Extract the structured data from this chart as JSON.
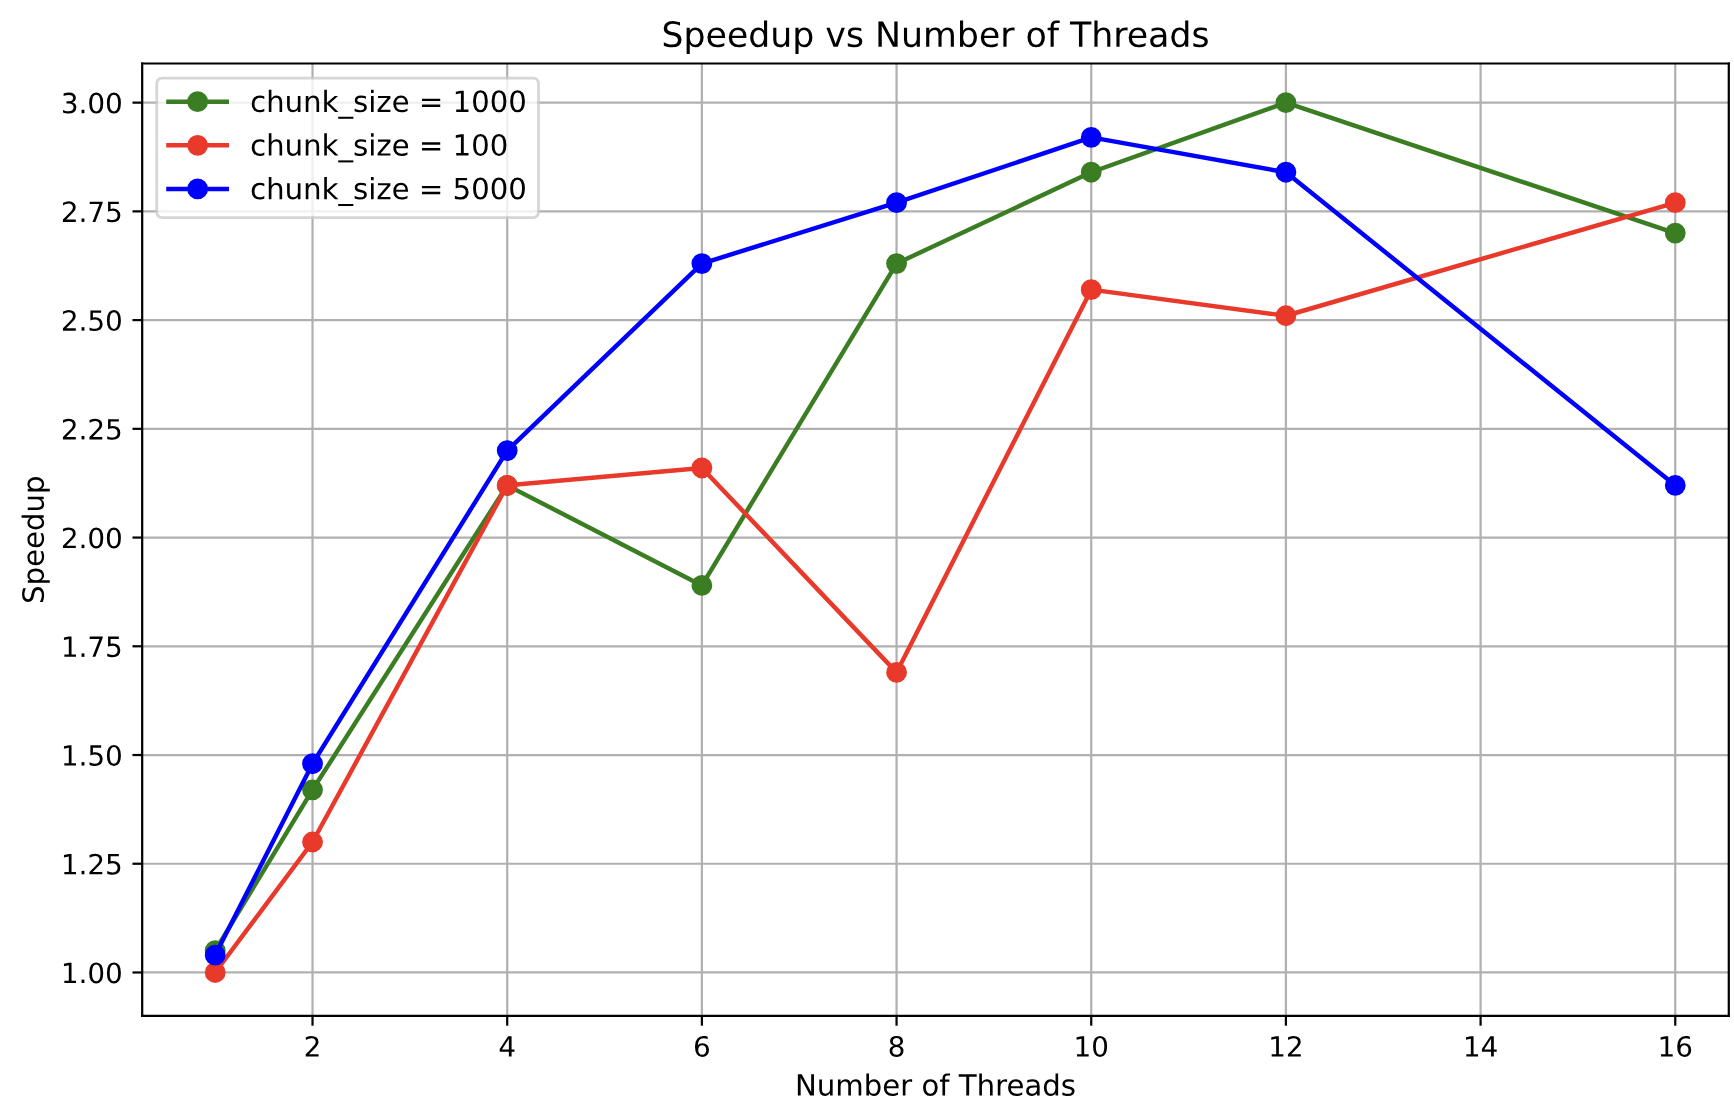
{
  "chart_data": {
    "type": "line",
    "title": "Speedup vs Number of Threads",
    "xlabel": "Number of Threads",
    "ylabel": "Speedup",
    "x": [
      1,
      2,
      4,
      6,
      8,
      10,
      12,
      16
    ],
    "series": [
      {
        "name": "chunk_size = 1000",
        "color": "#3a7d22",
        "values": [
          1.05,
          1.42,
          2.12,
          1.89,
          2.63,
          2.84,
          3.0,
          2.7
        ]
      },
      {
        "name": "chunk_size = 100",
        "color": "#e8392a",
        "values": [
          1.0,
          1.3,
          2.12,
          2.16,
          1.69,
          2.57,
          2.51,
          2.77
        ]
      },
      {
        "name": "chunk_size = 5000",
        "color": "#0000ff",
        "values": [
          1.04,
          1.48,
          2.2,
          2.63,
          2.77,
          2.92,
          2.84,
          2.12
        ]
      }
    ],
    "xlim": [
      0.25,
      16.55
    ],
    "ylim": [
      0.9,
      3.09
    ],
    "xticks": [
      2,
      4,
      6,
      8,
      10,
      12,
      14,
      16
    ],
    "yticks": [
      {
        "value": 1.0,
        "label": "1.00"
      },
      {
        "value": 1.25,
        "label": "1.25"
      },
      {
        "value": 1.5,
        "label": "1.50"
      },
      {
        "value": 1.75,
        "label": "1.75"
      },
      {
        "value": 2.0,
        "label": "2.00"
      },
      {
        "value": 2.25,
        "label": "2.25"
      },
      {
        "value": 2.5,
        "label": "2.50"
      },
      {
        "value": 2.75,
        "label": "2.75"
      },
      {
        "value": 3.0,
        "label": "3.00"
      }
    ],
    "grid": true,
    "legend": "top left",
    "marker": "circle",
    "line_style": "solid"
  }
}
